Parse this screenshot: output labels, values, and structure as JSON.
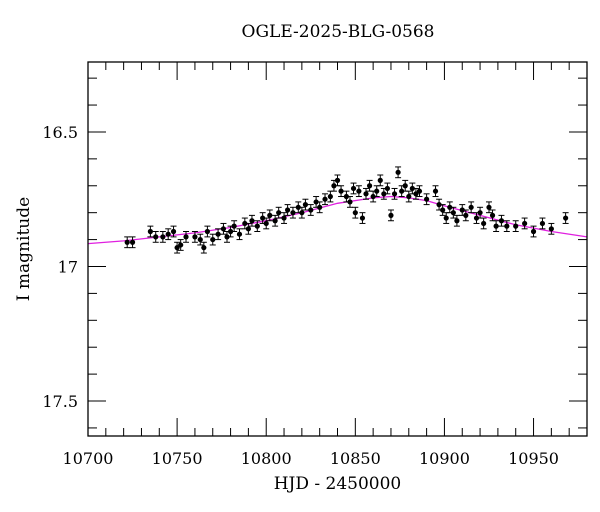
{
  "chart_data": {
    "type": "scatter",
    "title": "OGLE-2025-BLG-0568",
    "xlabel": "HJD - 2450000",
    "ylabel": "I magnitude",
    "xlim": [
      10700,
      10980
    ],
    "ylim": [
      17.63,
      16.24
    ],
    "y_inverted": true,
    "grid": false,
    "legend": null,
    "x_ticks": [
      10700,
      10750,
      10800,
      10850,
      10900,
      10950
    ],
    "x_minor_step": 10,
    "y_ticks": [
      16.5,
      17,
      17.5
    ],
    "y_tick_labels": [
      "16.5",
      "17",
      "17.5"
    ],
    "y_minor_step": 0.1,
    "colors": {
      "points": "#000000",
      "model": "#e020e0",
      "frame": "#000000"
    },
    "series": [
      {
        "name": "OGLE I-band photometry",
        "kind": "points_with_errorbars",
        "typical_error": 0.02,
        "points": [
          [
            10722,
            16.91
          ],
          [
            10725,
            16.91
          ],
          [
            10735,
            16.87
          ],
          [
            10738,
            16.89
          ],
          [
            10742,
            16.89
          ],
          [
            10745,
            16.88
          ],
          [
            10748,
            16.87
          ],
          [
            10750,
            16.93
          ],
          [
            10752,
            16.92
          ],
          [
            10755,
            16.89
          ],
          [
            10760,
            16.89
          ],
          [
            10763,
            16.9
          ],
          [
            10765,
            16.93
          ],
          [
            10767,
            16.87
          ],
          [
            10770,
            16.9
          ],
          [
            10773,
            16.88
          ],
          [
            10776,
            16.86
          ],
          [
            10778,
            16.89
          ],
          [
            10780,
            16.87
          ],
          [
            10782,
            16.85
          ],
          [
            10785,
            16.88
          ],
          [
            10788,
            16.84
          ],
          [
            10790,
            16.86
          ],
          [
            10792,
            16.83
          ],
          [
            10795,
            16.85
          ],
          [
            10798,
            16.82
          ],
          [
            10800,
            16.84
          ],
          [
            10802,
            16.81
          ],
          [
            10805,
            16.83
          ],
          [
            10807,
            16.8
          ],
          [
            10810,
            16.82
          ],
          [
            10812,
            16.79
          ],
          [
            10815,
            16.8
          ],
          [
            10818,
            16.78
          ],
          [
            10820,
            16.8
          ],
          [
            10822,
            16.77
          ],
          [
            10825,
            16.79
          ],
          [
            10828,
            16.76
          ],
          [
            10830,
            16.78
          ],
          [
            10833,
            16.75
          ],
          [
            10836,
            16.74
          ],
          [
            10838,
            16.7
          ],
          [
            10840,
            16.68
          ],
          [
            10842,
            16.72
          ],
          [
            10845,
            16.74
          ],
          [
            10847,
            16.76
          ],
          [
            10849,
            16.71
          ],
          [
            10850,
            16.8
          ],
          [
            10852,
            16.72
          ],
          [
            10854,
            16.82
          ],
          [
            10856,
            16.73
          ],
          [
            10858,
            16.7
          ],
          [
            10860,
            16.74
          ],
          [
            10862,
            16.72
          ],
          [
            10864,
            16.68
          ],
          [
            10866,
            16.73
          ],
          [
            10868,
            16.71
          ],
          [
            10870,
            16.81
          ],
          [
            10872,
            16.73
          ],
          [
            10874,
            16.65
          ],
          [
            10876,
            16.72
          ],
          [
            10878,
            16.7
          ],
          [
            10880,
            16.74
          ],
          [
            10882,
            16.71
          ],
          [
            10884,
            16.73
          ],
          [
            10886,
            16.72
          ],
          [
            10890,
            16.75
          ],
          [
            10895,
            16.72
          ],
          [
            10897,
            16.77
          ],
          [
            10899,
            16.79
          ],
          [
            10901,
            16.82
          ],
          [
            10903,
            16.78
          ],
          [
            10905,
            16.8
          ],
          [
            10907,
            16.83
          ],
          [
            10910,
            16.79
          ],
          [
            10912,
            16.81
          ],
          [
            10915,
            16.78
          ],
          [
            10918,
            16.82
          ],
          [
            10920,
            16.8
          ],
          [
            10922,
            16.84
          ],
          [
            10925,
            16.78
          ],
          [
            10927,
            16.81
          ],
          [
            10929,
            16.85
          ],
          [
            10932,
            16.83
          ],
          [
            10935,
            16.85
          ],
          [
            10940,
            16.85
          ],
          [
            10945,
            16.84
          ],
          [
            10950,
            16.87
          ],
          [
            10955,
            16.84
          ],
          [
            10960,
            16.86
          ],
          [
            10968,
            16.82
          ]
        ]
      },
      {
        "name": "Model",
        "kind": "line",
        "points": [
          [
            10700,
            16.915
          ],
          [
            10720,
            16.905
          ],
          [
            10740,
            16.89
          ],
          [
            10760,
            16.875
          ],
          [
            10780,
            16.855
          ],
          [
            10800,
            16.83
          ],
          [
            10820,
            16.8
          ],
          [
            10840,
            16.765
          ],
          [
            10860,
            16.745
          ],
          [
            10870,
            16.74
          ],
          [
            10880,
            16.745
          ],
          [
            10890,
            16.755
          ],
          [
            10900,
            16.775
          ],
          [
            10920,
            16.81
          ],
          [
            10940,
            16.845
          ],
          [
            10960,
            16.87
          ],
          [
            10980,
            16.89
          ]
        ]
      }
    ]
  }
}
